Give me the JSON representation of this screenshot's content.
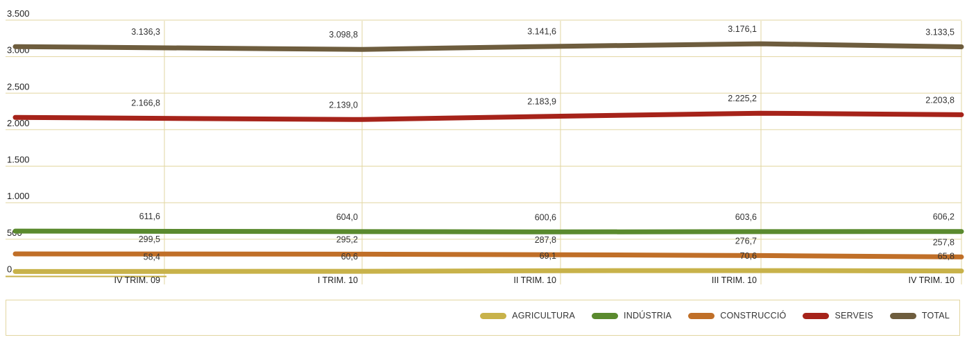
{
  "chart_data": {
    "type": "line",
    "categories": [
      "IV TRIM. 09",
      "I TRIM. 10",
      "II TRIM. 10",
      "III TRIM. 10",
      "IV TRIM. 10"
    ],
    "ylim": [
      0,
      3500
    ],
    "yticks": [
      0,
      500,
      1000,
      1500,
      2000,
      2500,
      3000,
      3500
    ],
    "ytick_labels": [
      "0",
      "500",
      "1.000",
      "1.500",
      "2.000",
      "2.500",
      "3.000",
      "3.500"
    ],
    "grid": true,
    "legend_position": "bottom-right",
    "series": [
      {
        "name": "AGRICULTURA",
        "color": "#c8b24a",
        "values": [
          58.4,
          60.6,
          69.1,
          70.6,
          65.8
        ],
        "labels": [
          "58,4",
          "60,6",
          "69,1",
          "70,6",
          "65,8"
        ]
      },
      {
        "name": "INDÚSTRIA",
        "color": "#5a8a2e",
        "values": [
          611.6,
          604.0,
          600.6,
          603.6,
          606.2
        ],
        "labels": [
          "611,6",
          "604,0",
          "600,6",
          "603,6",
          "606,2"
        ]
      },
      {
        "name": "CONSTRUCCIÓ",
        "color": "#c06f28",
        "values": [
          299.5,
          295.2,
          287.8,
          276.7,
          257.8
        ],
        "labels": [
          "299,5",
          "295,2",
          "287,8",
          "276,7",
          "257,8"
        ]
      },
      {
        "name": "SERVEIS",
        "color": "#a6231a",
        "values": [
          2166.8,
          2139.0,
          2183.9,
          2225.2,
          2203.8
        ],
        "labels": [
          "2.166,8",
          "2.139,0",
          "2.183,9",
          "2.225,2",
          "2.203,8"
        ]
      },
      {
        "name": "TOTAL",
        "color": "#6e5d3e",
        "values": [
          3136.3,
          3098.8,
          3141.6,
          3176.1,
          3133.5
        ],
        "labels": [
          "3.136,3",
          "3.098,8",
          "3.141,6",
          "3.176,1",
          "3.133,5"
        ]
      }
    ],
    "colors": {
      "grid": "#e2d6a0",
      "baseline": "#c8b24a"
    }
  }
}
